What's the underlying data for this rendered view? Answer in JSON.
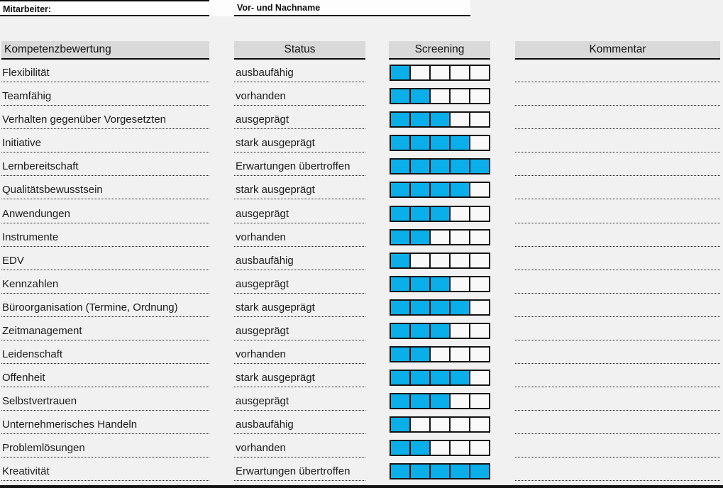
{
  "top": {
    "mitarbeiter_label": "Mitarbeiter:",
    "name_placeholder_label": "Vor- und Nachname",
    "name_value": ""
  },
  "columns": {
    "competency": "Kompetenzbewertung",
    "status": "Status",
    "screening": "Screening",
    "comment": "Kommentar"
  },
  "screening": {
    "scale_max": 5,
    "fill_color": "#0AAEE9",
    "empty_color": "#F9F9F9",
    "border_color": "#141414"
  },
  "colors": {
    "header_bg": "#D9D9D9",
    "page_bg": "#F1F1F1",
    "border_black": "#0A0A0A"
  },
  "rows": [
    {
      "competency": "Flexibilität",
      "status": "ausbaufähig",
      "screening": 1,
      "comment": ""
    },
    {
      "competency": "Teamfähig",
      "status": "vorhanden",
      "screening": 2,
      "comment": ""
    },
    {
      "competency": "Verhalten gegenüber Vorgesetzten",
      "status": "ausgeprägt",
      "screening": 3,
      "comment": ""
    },
    {
      "competency": "Initiative",
      "status": "stark ausgeprägt",
      "screening": 4,
      "comment": ""
    },
    {
      "competency": "Lernbereitschaft",
      "status": "Erwartungen übertroffen",
      "screening": 5,
      "comment": ""
    },
    {
      "competency": "Qualitätsbewusstsein",
      "status": "stark ausgeprägt",
      "screening": 4,
      "comment": ""
    },
    {
      "competency": "Anwendungen",
      "status": "ausgeprägt",
      "screening": 3,
      "comment": ""
    },
    {
      "competency": "Instrumente",
      "status": "vorhanden",
      "screening": 2,
      "comment": ""
    },
    {
      "competency": "EDV",
      "status": "ausbaufähig",
      "screening": 1,
      "comment": ""
    },
    {
      "competency": "Kennzahlen",
      "status": "ausgeprägt",
      "screening": 3,
      "comment": ""
    },
    {
      "competency": "Büroorganisation (Termine, Ordnung)",
      "status": "stark ausgeprägt",
      "screening": 4,
      "comment": ""
    },
    {
      "competency": "Zeitmanagement",
      "status": "ausgeprägt",
      "screening": 3,
      "comment": ""
    },
    {
      "competency": "Leidenschaft",
      "status": "vorhanden",
      "screening": 2,
      "comment": ""
    },
    {
      "competency": "Offenheit",
      "status": "stark ausgeprägt",
      "screening": 4,
      "comment": ""
    },
    {
      "competency": "Selbstvertrauen",
      "status": "ausgeprägt",
      "screening": 3,
      "comment": ""
    },
    {
      "competency": "Unternehmerisches Handeln",
      "status": "ausbaufähig",
      "screening": 1,
      "comment": ""
    },
    {
      "competency": "Problemlösungen",
      "status": "vorhanden",
      "screening": 2,
      "comment": ""
    },
    {
      "competency": "Kreativität",
      "status": "Erwartungen übertroffen",
      "screening": 5,
      "comment": ""
    }
  ]
}
